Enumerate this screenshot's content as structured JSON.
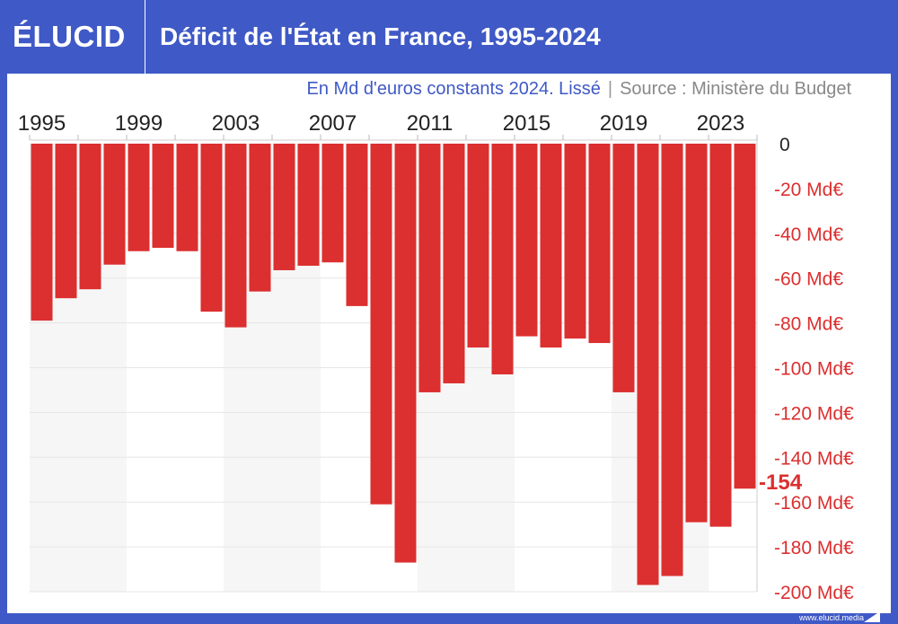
{
  "header": {
    "logo": "ÉLUCID",
    "title": "Déficit de l'État en France, 1995-2024"
  },
  "subtitle": {
    "unit": "En Md d'euros constants 2024. Lissé",
    "separator": "|",
    "source": "Source : Ministère du Budget"
  },
  "footer": {
    "url": "www.elucid.media"
  },
  "colors": {
    "bar": "#dc2f2f",
    "frame": "#3f59c6",
    "band": "#f6f6f6",
    "axis_label": "#dc2f2f"
  },
  "chart_data": {
    "type": "bar",
    "title": "Déficit de l'État en France, 1995-2024",
    "subtitle": "En Md d'euros constants 2024. Lissé",
    "categories": [
      1995,
      1996,
      1997,
      1998,
      1999,
      2000,
      2001,
      2002,
      2003,
      2004,
      2005,
      2006,
      2007,
      2008,
      2009,
      2010,
      2011,
      2012,
      2013,
      2014,
      2015,
      2016,
      2017,
      2018,
      2019,
      2020,
      2021,
      2022,
      2023,
      2024
    ],
    "values": [
      -79,
      -69,
      -65,
      -54,
      -48,
      -46.5,
      -48,
      -75,
      -82,
      -66,
      -56.5,
      -54.5,
      -53,
      -72.5,
      -161,
      -187,
      -111,
      -107,
      -91,
      -103,
      -86,
      -91,
      -87,
      -89,
      -111,
      -197,
      -193,
      -169,
      -171,
      -154
    ],
    "x_tick_labels": [
      "1995",
      "1999",
      "2003",
      "2007",
      "2011",
      "2015",
      "2019",
      "2023"
    ],
    "y_tick_labels": [
      "0",
      "-20 Md€",
      "-40 Md€",
      "-60 Md€",
      "-80 Md€",
      "-100 Md€",
      "-120 Md€",
      "-140 Md€",
      "-160 Md€",
      "-180 Md€",
      "-200 Md€"
    ],
    "y_ticks": [
      0,
      -20,
      -40,
      -60,
      -80,
      -100,
      -120,
      -140,
      -160,
      -180,
      -200
    ],
    "ylim": [
      -200,
      0
    ],
    "annotation": "-154",
    "grid": true,
    "y_axis_position": "right",
    "x_axis_position": "top"
  }
}
